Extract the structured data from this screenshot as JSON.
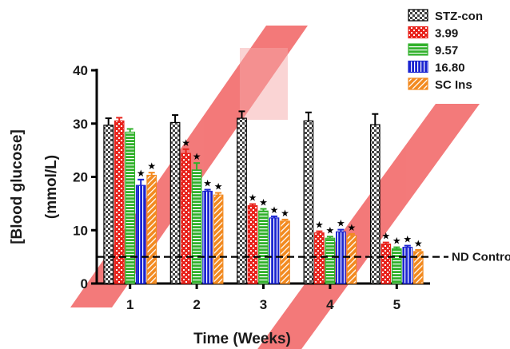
{
  "chart_data": {
    "type": "bar",
    "categories": [
      "1",
      "2",
      "3",
      "4",
      "5"
    ],
    "series": [
      {
        "name": "STZ-con",
        "values": [
          29.7,
          30.2,
          31.0,
          30.5,
          29.8
        ],
        "errors": [
          1.3,
          1.4,
          1.3,
          1.6,
          2.0
        ],
        "significant": [
          false,
          false,
          false,
          false,
          false
        ],
        "color": "#555555"
      },
      {
        "name": "3.99",
        "values": [
          30.5,
          24.4,
          14.6,
          9.5,
          7.4
        ],
        "errors": [
          0.6,
          0.8,
          0.3,
          0.3,
          0.3
        ],
        "significant": [
          false,
          true,
          true,
          true,
          true
        ],
        "color": "#e8231c"
      },
      {
        "name": "9.57",
        "values": [
          28.4,
          21.3,
          13.6,
          8.5,
          6.5
        ],
        "errors": [
          0.6,
          1.3,
          0.4,
          0.3,
          0.3
        ],
        "significant": [
          false,
          true,
          true,
          true,
          true
        ],
        "color": "#31b12b"
      },
      {
        "name": "16.80",
        "values": [
          18.4,
          17.3,
          12.3,
          9.7,
          6.8
        ],
        "errors": [
          1.1,
          0.3,
          0.3,
          0.4,
          0.3
        ],
        "significant": [
          true,
          true,
          true,
          true,
          true
        ],
        "color": "#1a24d1"
      },
      {
        "name": "SC Ins",
        "values": [
          20.3,
          16.6,
          11.7,
          9.0,
          6.0
        ],
        "errors": [
          0.5,
          0.4,
          0.3,
          0.3,
          0.3
        ],
        "significant": [
          true,
          true,
          true,
          true,
          true
        ],
        "color": "#f28a20"
      }
    ],
    "xlabel": "Time (Weeks)",
    "ylabel_line1": "[Blood glucose]",
    "ylabel_line2": "(mmol/L)",
    "ylim": [
      0,
      40
    ],
    "yticks": [
      "0",
      "10",
      "20",
      "30",
      "40"
    ],
    "reference_line": {
      "label": "ND Control",
      "value": 5.0
    },
    "significance_marker": "★",
    "legend_position": "top-right",
    "grid": false,
    "watermark_color": "#f26b6b"
  }
}
